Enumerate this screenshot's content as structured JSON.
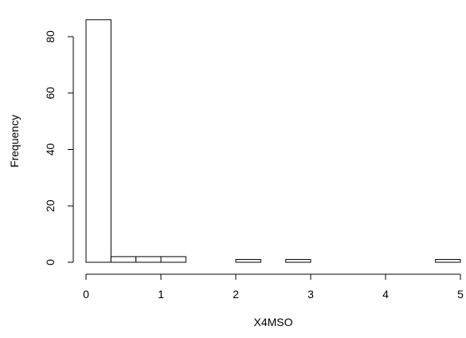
{
  "chart_data": {
    "type": "bar",
    "title": "",
    "xlabel": "X4MSO",
    "ylabel": "Frequency",
    "xlim": [
      0,
      5
    ],
    "ylim": [
      0,
      80
    ],
    "bin_width": 0.3333,
    "bins": [
      {
        "start": 0.0,
        "end": 0.3333,
        "count": 86
      },
      {
        "start": 0.3333,
        "end": 0.6667,
        "count": 2
      },
      {
        "start": 0.6667,
        "end": 1.0,
        "count": 2
      },
      {
        "start": 1.0,
        "end": 1.3333,
        "count": 2
      },
      {
        "start": 1.3333,
        "end": 1.6667,
        "count": 0
      },
      {
        "start": 1.6667,
        "end": 2.0,
        "count": 0
      },
      {
        "start": 2.0,
        "end": 2.3333,
        "count": 1
      },
      {
        "start": 2.3333,
        "end": 2.6667,
        "count": 0
      },
      {
        "start": 2.6667,
        "end": 3.0,
        "count": 1
      },
      {
        "start": 3.0,
        "end": 3.3333,
        "count": 0
      },
      {
        "start": 3.3333,
        "end": 3.6667,
        "count": 0
      },
      {
        "start": 3.6667,
        "end": 4.0,
        "count": 0
      },
      {
        "start": 4.0,
        "end": 4.3333,
        "count": 0
      },
      {
        "start": 4.3333,
        "end": 4.6667,
        "count": 0
      },
      {
        "start": 4.6667,
        "end": 5.0,
        "count": 1
      }
    ],
    "x_ticks": [
      "0",
      "1",
      "2",
      "3",
      "4",
      "5"
    ],
    "y_ticks": [
      "0",
      "20",
      "40",
      "60",
      "80"
    ],
    "grid": false,
    "legend": "none"
  }
}
